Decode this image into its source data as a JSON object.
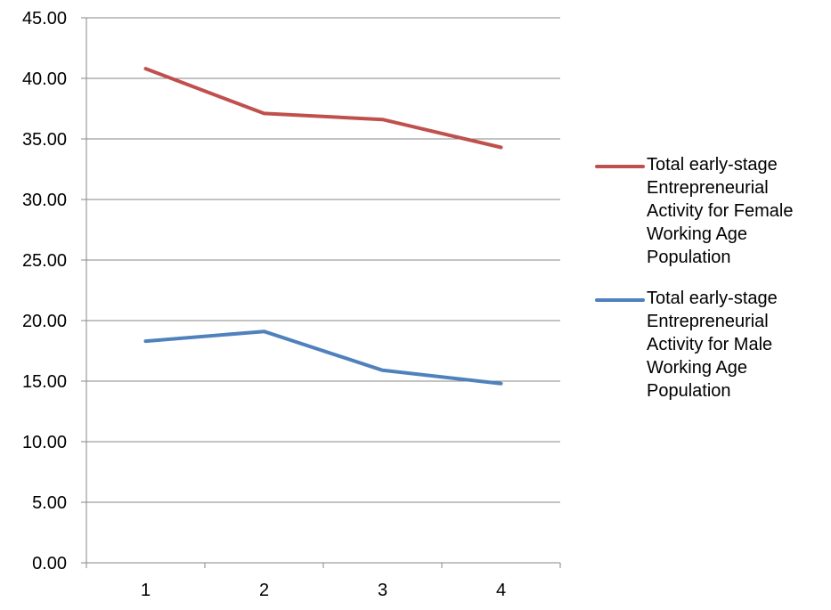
{
  "chart_data": {
    "type": "line",
    "title": "",
    "xlabel": "",
    "ylabel": "",
    "categories": [
      "1",
      "2",
      "3",
      "4"
    ],
    "ylim": [
      0,
      45
    ],
    "y_ticks": [
      "0.00",
      "5.00",
      "10.00",
      "15.00",
      "20.00",
      "25.00",
      "30.00",
      "35.00",
      "40.00",
      "45.00"
    ],
    "grid": true,
    "legend_position": "right",
    "series": [
      {
        "name": "Total early-stage Entrepreneurial Activity for Female Working Age Population",
        "color": "#c0504d",
        "values": [
          40.8,
          37.1,
          36.6,
          34.3
        ]
      },
      {
        "name": "Total early-stage Entrepreneurial Activity for Male Working Age Population",
        "color": "#4f81bd",
        "values": [
          18.3,
          19.1,
          15.9,
          14.8
        ]
      }
    ]
  }
}
